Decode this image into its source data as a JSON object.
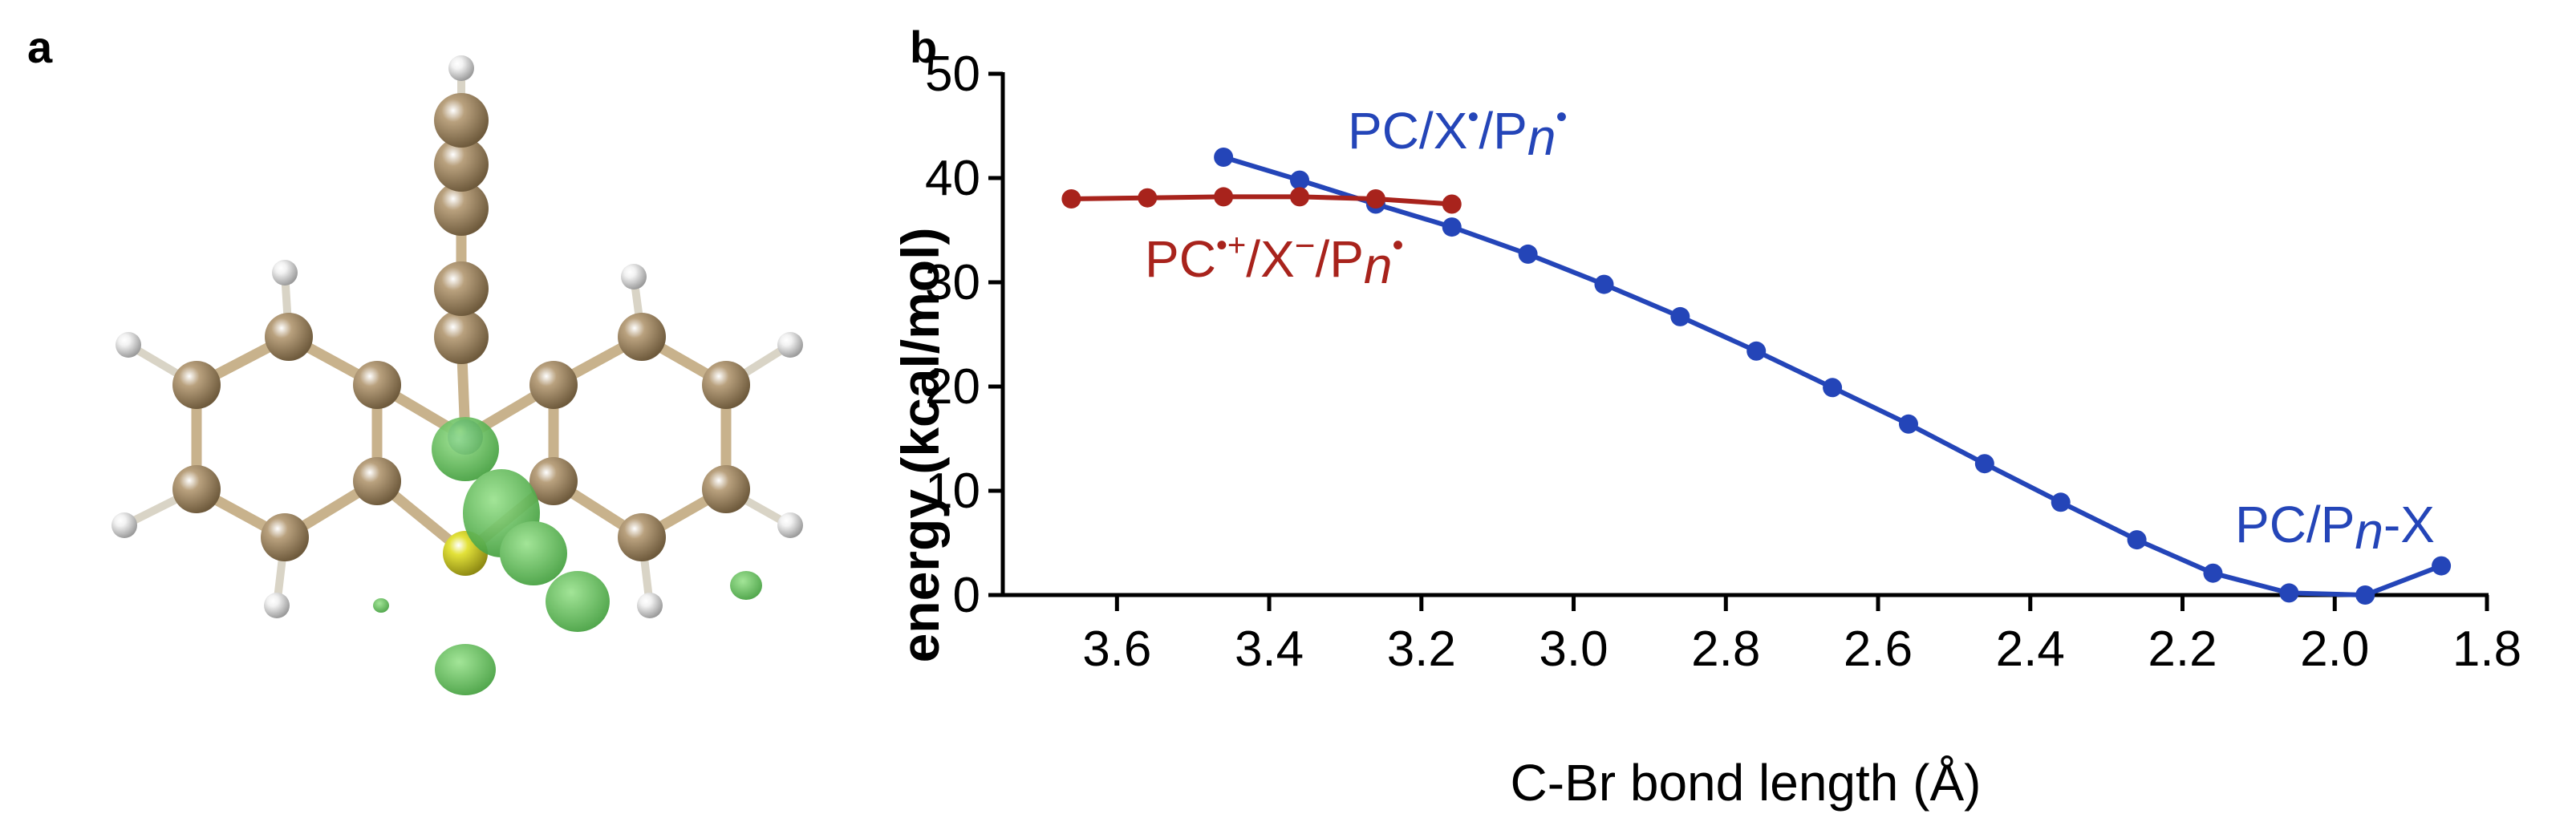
{
  "panels": {
    "a_label": "a",
    "b_label": "b"
  },
  "molecule": {
    "colors": {
      "carbon": "#b9a17e",
      "hydrogen": "#f2f2f2",
      "nitrogen": "#3c6ed1",
      "sulfur": "#e3e23a",
      "orbital": "#62c35c",
      "bond": "#c8b28c"
    }
  },
  "chart_data": {
    "type": "line",
    "title": "",
    "xlabel": "C-Br bond length (Å)",
    "ylabel": "energy (kcal/mol)",
    "xlim": [
      3.75,
      1.8
    ],
    "ylim": [
      0,
      50
    ],
    "x_ticks": [
      3.6,
      3.4,
      3.2,
      3.0,
      2.8,
      2.6,
      2.4,
      2.2,
      2.0,
      1.8
    ],
    "x_tick_labels": [
      "3.6",
      "3.4",
      "3.2",
      "3.0",
      "2.8",
      "2.6",
      "2.4",
      "2.2",
      "2.0",
      "1.8"
    ],
    "y_ticks": [
      0,
      10,
      20,
      30,
      40,
      50
    ],
    "y_tick_labels": [
      "0",
      "10",
      "20",
      "30",
      "40",
      "50"
    ],
    "series": [
      {
        "name": "PC/X•/Pn•",
        "color": "#2445b8",
        "x": [
          3.46,
          3.36,
          3.26,
          3.16,
          3.06,
          2.96,
          2.86,
          2.76,
          2.66,
          2.56,
          2.46,
          2.36,
          2.26,
          2.16,
          2.06,
          1.96,
          1.86
        ],
        "y": [
          42.0,
          39.8,
          37.5,
          35.3,
          32.7,
          29.8,
          26.7,
          23.4,
          19.9,
          16.4,
          12.6,
          8.9,
          5.3,
          2.1,
          0.2,
          0.0,
          2.8
        ]
      },
      {
        "name": "PC•+/X−/Pn•",
        "color": "#a8231c",
        "x": [
          3.66,
          3.56,
          3.46,
          3.36,
          3.26,
          3.16
        ],
        "y": [
          38.0,
          38.1,
          38.2,
          38.2,
          38.0,
          37.5
        ]
      }
    ],
    "annotations": {
      "blue_top": {
        "main": "PC/X",
        "dot1": "•",
        "mid": "/P",
        "sub": "n",
        "dot2": "•"
      },
      "red": {
        "main": "PC",
        "dot_plus": "•+",
        "mid": "/X",
        "minus": "−",
        "mid2": "/P",
        "sub": "n",
        "dot": "•"
      },
      "blue_right": {
        "main": "PC/P",
        "sub": "n",
        "end": "-X"
      }
    }
  }
}
